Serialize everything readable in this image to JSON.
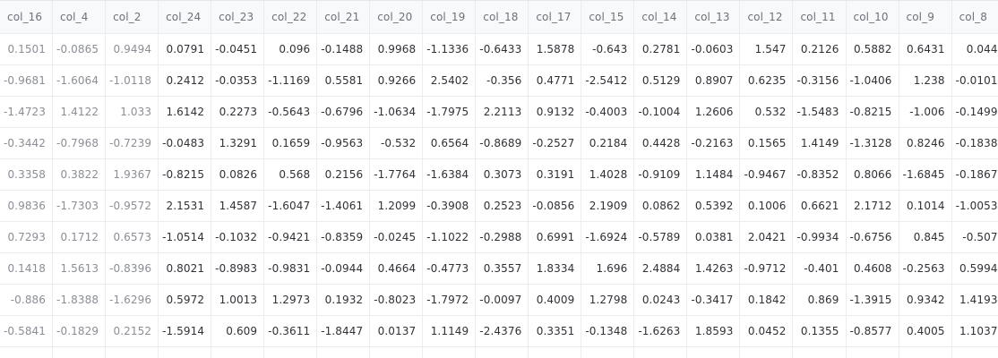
{
  "grid": {
    "columns": [
      {
        "name": "col_16",
        "muted": true
      },
      {
        "name": "col_4",
        "muted": true
      },
      {
        "name": "col_2",
        "muted": true
      },
      {
        "name": "col_24",
        "muted": false
      },
      {
        "name": "col_23",
        "muted": false
      },
      {
        "name": "col_22",
        "muted": false
      },
      {
        "name": "col_21",
        "muted": false
      },
      {
        "name": "col_20",
        "muted": false
      },
      {
        "name": "col_19",
        "muted": false
      },
      {
        "name": "col_18",
        "muted": false
      },
      {
        "name": "col_17",
        "muted": false
      },
      {
        "name": "col_15",
        "muted": false
      },
      {
        "name": "col_14",
        "muted": false
      },
      {
        "name": "col_13",
        "muted": false
      },
      {
        "name": "col_12",
        "muted": false
      },
      {
        "name": "col_11",
        "muted": false
      },
      {
        "name": "col_10",
        "muted": false
      },
      {
        "name": "col_9",
        "muted": false
      },
      {
        "name": "col_8",
        "muted": false
      }
    ],
    "rows": [
      [
        "0.1501",
        "-0.0865",
        "0.9494",
        "0.0791",
        "-0.0451",
        "0.096",
        "-0.1488",
        "0.9968",
        "-1.1336",
        "-0.6433",
        "1.5878",
        "-0.643",
        "0.2781",
        "-0.0603",
        "1.547",
        "0.2126",
        "0.5882",
        "0.6431",
        "0.044"
      ],
      [
        "-0.9681",
        "-1.6064",
        "-1.0118",
        "0.2412",
        "-0.0353",
        "-1.1169",
        "0.5581",
        "0.9266",
        "2.5402",
        "-0.356",
        "0.4771",
        "-2.5412",
        "0.5129",
        "0.8907",
        "0.6235",
        "-0.3156",
        "-1.0406",
        "1.238",
        "-0.0101"
      ],
      [
        "-1.4723",
        "1.4122",
        "1.033",
        "1.6142",
        "0.2273",
        "-0.5643",
        "-0.6796",
        "-1.0634",
        "-1.7975",
        "2.2113",
        "0.9132",
        "-0.4003",
        "-0.1004",
        "1.2606",
        "0.532",
        "-1.5483",
        "-0.8215",
        "-1.006",
        "-0.1499"
      ],
      [
        "-0.3442",
        "-0.7968",
        "-0.7239",
        "-0.0483",
        "1.3291",
        "0.1659",
        "-0.9563",
        "-0.532",
        "0.6564",
        "-0.8689",
        "-0.2527",
        "0.2184",
        "0.4428",
        "-0.2163",
        "0.1565",
        "1.4149",
        "-1.3128",
        "0.8246",
        "-0.1838"
      ],
      [
        "0.3358",
        "0.3822",
        "1.9367",
        "-0.8215",
        "0.0826",
        "0.568",
        "0.2156",
        "-1.7764",
        "-1.6384",
        "0.3073",
        "0.3191",
        "1.4028",
        "-0.9109",
        "1.1484",
        "-0.9467",
        "-0.8352",
        "0.8066",
        "-1.6845",
        "-0.1867"
      ],
      [
        "0.9836",
        "-1.7303",
        "-0.9572",
        "2.1531",
        "1.4587",
        "-1.6047",
        "-1.4061",
        "1.2099",
        "-0.3908",
        "0.2523",
        "-0.0856",
        "2.1909",
        "0.0862",
        "0.5392",
        "0.1006",
        "0.6621",
        "2.1712",
        "0.1014",
        "-1.0053"
      ],
      [
        "0.7293",
        "0.1712",
        "0.6573",
        "-1.0514",
        "-0.1032",
        "-0.9421",
        "-0.8359",
        "-0.0245",
        "-1.1022",
        "-0.2988",
        "0.6991",
        "-1.6924",
        "-0.5789",
        "0.0381",
        "2.0421",
        "-0.9934",
        "-0.6756",
        "0.845",
        "-0.507"
      ],
      [
        "0.1418",
        "1.5613",
        "-0.8396",
        "0.8021",
        "-0.8983",
        "-0.9831",
        "-0.0944",
        "0.4664",
        "-0.4773",
        "0.3557",
        "1.8334",
        "1.696",
        "2.4884",
        "1.4263",
        "-0.9712",
        "-0.401",
        "0.4608",
        "-0.2563",
        "0.5994"
      ],
      [
        "-0.886",
        "-1.8388",
        "-1.6296",
        "0.5972",
        "1.0013",
        "1.2973",
        "0.1932",
        "-0.8023",
        "-1.7972",
        "-0.0097",
        "0.4009",
        "1.2798",
        "0.0243",
        "-0.3417",
        "0.1842",
        "0.869",
        "-1.3915",
        "0.9342",
        "1.4193"
      ],
      [
        "-0.5841",
        "-0.1829",
        "0.2152",
        "-1.5914",
        "0.609",
        "-0.3611",
        "-1.8447",
        "0.0137",
        "1.1149",
        "-2.4376",
        "0.3351",
        "-0.1348",
        "-1.6263",
        "1.8593",
        "0.0452",
        "0.1355",
        "-0.8577",
        "0.4005",
        "1.1037"
      ]
    ]
  }
}
